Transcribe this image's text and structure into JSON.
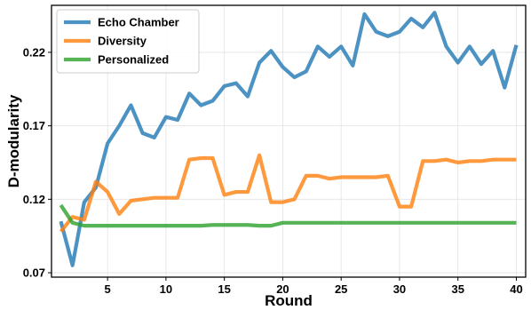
{
  "chart_data": {
    "type": "line",
    "xlabel": "Round",
    "ylabel": "D-modularity",
    "xlim": [
      0.2,
      40.8
    ],
    "ylim": [
      0.067,
      0.252
    ],
    "xticks": [
      5,
      10,
      15,
      20,
      25,
      30,
      35,
      40
    ],
    "yticks": [
      0.07,
      0.12,
      0.17,
      0.22
    ],
    "ytick_labels": [
      "0.07",
      "0.12",
      "0.17",
      "0.22"
    ],
    "grid": true,
    "legend_position": "top-left",
    "x": [
      1,
      2,
      3,
      4,
      5,
      6,
      7,
      8,
      9,
      10,
      11,
      12,
      13,
      14,
      15,
      16,
      17,
      18,
      19,
      20,
      21,
      22,
      23,
      24,
      25,
      26,
      27,
      28,
      29,
      30,
      31,
      32,
      33,
      34,
      35,
      36,
      37,
      38,
      39,
      40
    ],
    "series": [
      {
        "name": "Echo Chamber",
        "color": "#1f77b4",
        "values": [
          0.105,
          0.075,
          0.118,
          0.128,
          0.158,
          0.17,
          0.184,
          0.165,
          0.162,
          0.176,
          0.174,
          0.192,
          0.184,
          0.187,
          0.197,
          0.199,
          0.19,
          0.213,
          0.221,
          0.21,
          0.203,
          0.207,
          0.224,
          0.217,
          0.224,
          0.211,
          0.246,
          0.234,
          0.231,
          0.234,
          0.243,
          0.237,
          0.247,
          0.224,
          0.213,
          0.224,
          0.212,
          0.221,
          0.196,
          0.225
        ]
      },
      {
        "name": "Diversity",
        "color": "#ff7f0e",
        "values": [
          0.098,
          0.108,
          0.106,
          0.132,
          0.125,
          0.11,
          0.119,
          0.12,
          0.121,
          0.121,
          0.121,
          0.147,
          0.148,
          0.148,
          0.123,
          0.125,
          0.125,
          0.15,
          0.118,
          0.118,
          0.12,
          0.136,
          0.136,
          0.134,
          0.135,
          0.135,
          0.135,
          0.135,
          0.136,
          0.115,
          0.115,
          0.146,
          0.146,
          0.147,
          0.145,
          0.146,
          0.146,
          0.147,
          0.147,
          0.147
        ]
      },
      {
        "name": "Personalized",
        "color": "#2ca02c",
        "values": [
          0.116,
          0.104,
          0.102,
          0.102,
          0.102,
          0.102,
          0.102,
          0.102,
          0.102,
          0.102,
          0.102,
          0.102,
          0.102,
          0.1025,
          0.1025,
          0.1025,
          0.1025,
          0.102,
          0.102,
          0.104,
          0.104,
          0.104,
          0.104,
          0.104,
          0.104,
          0.104,
          0.104,
          0.104,
          0.104,
          0.104,
          0.104,
          0.104,
          0.104,
          0.104,
          0.104,
          0.104,
          0.104,
          0.104,
          0.104,
          0.104
        ]
      }
    ]
  }
}
